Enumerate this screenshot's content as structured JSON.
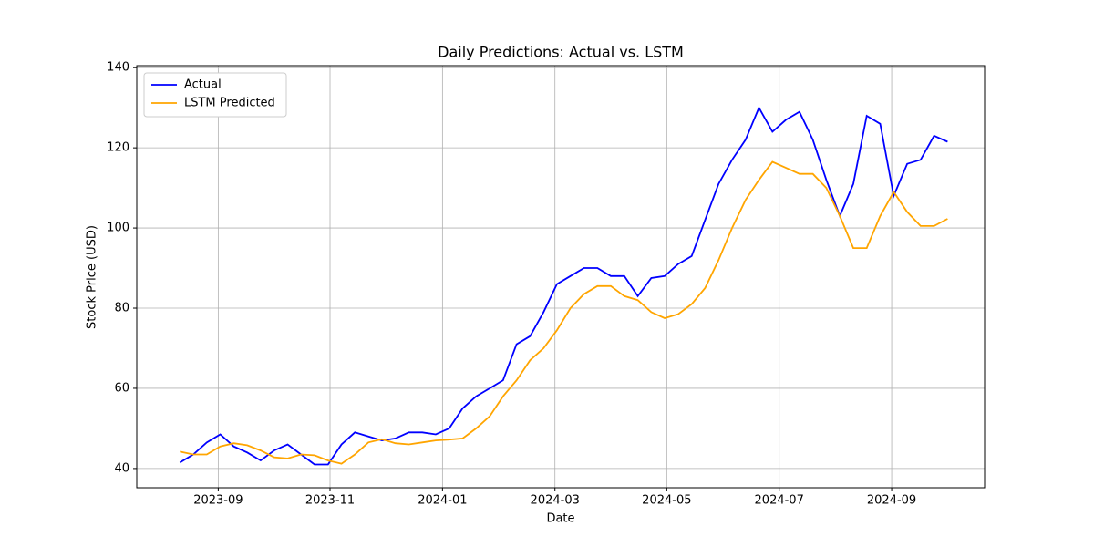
{
  "chart_data": {
    "type": "line",
    "title": "Daily Predictions: Actual vs. LSTM",
    "x_label": "Date",
    "y_label": "Stock Price (USD)",
    "x": [
      2023.61,
      2023.63,
      2023.65,
      2023.67,
      2023.69,
      2023.71,
      2023.73,
      2023.75,
      2023.77,
      2023.79,
      2023.81,
      2023.83,
      2023.85,
      2023.87,
      2023.89,
      2023.91,
      2023.93,
      2023.95,
      2023.97,
      2023.99,
      2024.01,
      2024.03,
      2024.05,
      2024.07,
      2024.09,
      2024.11,
      2024.13,
      2024.15,
      2024.17,
      2024.19,
      2024.21,
      2024.23,
      2024.25,
      2024.27,
      2024.29,
      2024.31,
      2024.33,
      2024.35,
      2024.37,
      2024.39,
      2024.41,
      2024.43,
      2024.45,
      2024.47,
      2024.49,
      2024.51,
      2024.53,
      2024.55,
      2024.57,
      2024.59,
      2024.61,
      2024.63,
      2024.65,
      2024.67,
      2024.69,
      2024.71,
      2024.73,
      2024.75
    ],
    "series": [
      {
        "name": "Actual",
        "color": "#0000ff",
        "values": [
          41.5,
          43.5,
          46.5,
          48.5,
          45.5,
          44,
          42,
          44.5,
          46,
          43.5,
          41,
          41,
          46,
          49,
          48,
          47,
          47.5,
          49,
          49,
          48.5,
          50,
          55,
          58,
          60,
          62,
          71,
          73,
          79,
          86,
          88,
          90,
          90,
          88,
          88,
          83,
          87.5,
          88,
          91,
          93,
          102,
          111,
          117,
          122,
          130,
          124,
          127,
          129,
          122,
          112,
          103,
          111,
          128,
          126,
          108,
          116,
          117,
          123,
          121.5
        ]
      },
      {
        "name": "LSTM Predicted",
        "color": "#ffa500",
        "values": [
          44.2,
          43.5,
          43.5,
          45.5,
          46.3,
          45.8,
          44.5,
          42.8,
          42.5,
          43.5,
          43.3,
          42,
          41.2,
          43.5,
          46.5,
          47.3,
          46.3,
          46,
          46.5,
          47,
          47.2,
          47.5,
          50,
          53,
          58,
          62,
          67,
          70,
          74.5,
          80,
          83.5,
          85.5,
          85.5,
          83,
          82,
          79,
          77.5,
          78.5,
          81,
          85,
          92,
          100,
          107,
          112,
          116.5,
          115,
          113.5,
          113.5,
          110,
          103,
          95,
          95,
          103,
          109,
          104,
          100.5,
          100.5,
          102.3
        ]
      }
    ],
    "xlim": [
      2023.546,
      2024.805
    ],
    "xticks": [
      {
        "value": 2023.667,
        "label": "2023-09"
      },
      {
        "value": 2023.833,
        "label": "2023-11"
      },
      {
        "value": 2024.0,
        "label": "2024-01"
      },
      {
        "value": 2024.167,
        "label": "2024-03"
      },
      {
        "value": 2024.333,
        "label": "2024-05"
      },
      {
        "value": 2024.5,
        "label": "2024-07"
      },
      {
        "value": 2024.667,
        "label": "2024-09"
      }
    ],
    "ylim": [
      35.2,
      140.5
    ],
    "yticks": [
      40,
      60,
      80,
      100,
      120,
      140
    ],
    "grid": true,
    "legend": "upper left"
  }
}
